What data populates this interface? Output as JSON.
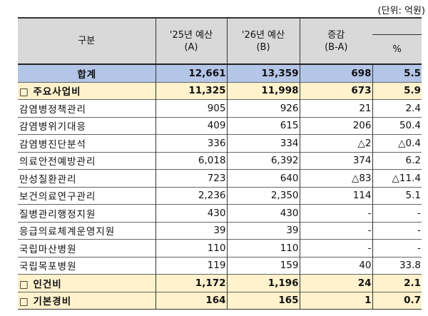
{
  "unit_label": "(단위: 억원)",
  "headers": {
    "category": "구분",
    "budget25": "'25년 예산\n(A)",
    "budget25_l1": "'25년 예산",
    "budget25_l2": "(A)",
    "budget26_l1": "'26년 예산",
    "budget26_l2": "(B)",
    "change_l1": "증감",
    "change_l2": "(B-A)",
    "pct": "%"
  },
  "rows": [
    {
      "name": "합계",
      "a": "12,661",
      "b": "13,359",
      "diff": "698",
      "pct": "5.5",
      "type": "total"
    },
    {
      "name": "□ 주요사업비",
      "a": "11,325",
      "b": "11,998",
      "diff": "673",
      "pct": "5.9",
      "type": "sub"
    },
    {
      "name": "감염병정책관리",
      "a": "905",
      "b": "926",
      "diff": "21",
      "pct": "2.4"
    },
    {
      "name": "감염병위기대응",
      "a": "409",
      "b": "615",
      "diff": "206",
      "pct": "50.4"
    },
    {
      "name": "감염병진단분석",
      "a": "336",
      "b": "334",
      "diff": "△2",
      "pct": "△0.4"
    },
    {
      "name": "의료안전예방관리",
      "a": "6,018",
      "b": "6,392",
      "diff": "374",
      "pct": "6.2"
    },
    {
      "name": "만성질환관리",
      "a": "723",
      "b": "640",
      "diff": "△83",
      "pct": "△11.4"
    },
    {
      "name": "보건의료연구관리",
      "a": "2,236",
      "b": "2,350",
      "diff": "114",
      "pct": "5.1"
    },
    {
      "name": "질병관리행정지원",
      "a": "430",
      "b": "430",
      "diff": "-",
      "pct": "-"
    },
    {
      "name": "응급의료체계운영지원",
      "a": "39",
      "b": "39",
      "diff": "-",
      "pct": "-"
    },
    {
      "name": "국립마산병원",
      "a": "110",
      "b": "110",
      "diff": "-",
      "pct": "-"
    },
    {
      "name": "국립목포병원",
      "a": "119",
      "b": "159",
      "diff": "40",
      "pct": "33.8"
    },
    {
      "name": "□ 인건비",
      "a": "1,172",
      "b": "1,196",
      "diff": "24",
      "pct": "2.1",
      "type": "sub"
    },
    {
      "name": "□ 기본경비",
      "a": "164",
      "b": "165",
      "diff": "1",
      "pct": "0.7",
      "type": "sub"
    }
  ],
  "colors": {
    "header": "#d9d9d9",
    "total": "#b4c6e7",
    "subtotal": "#fff2cc"
  }
}
